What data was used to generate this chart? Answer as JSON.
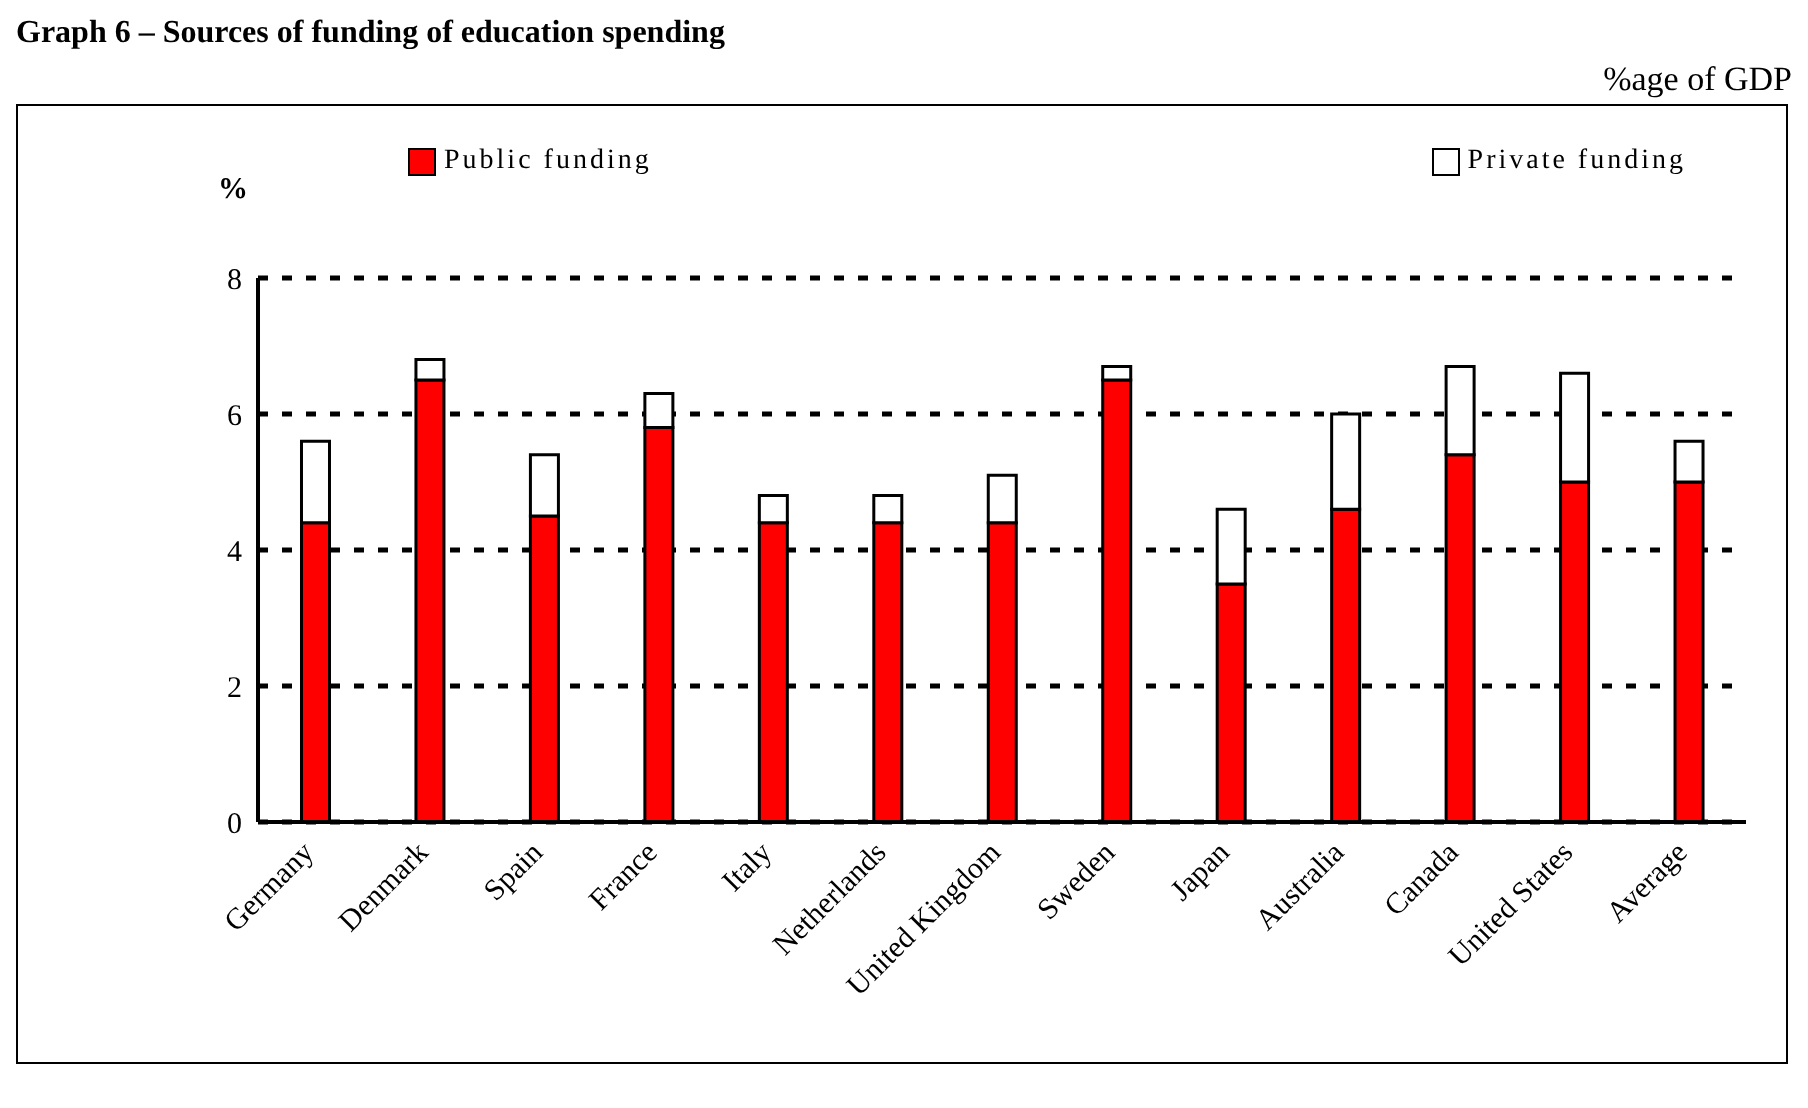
{
  "chart_data": {
    "type": "bar",
    "title": "Graph 6 – Sources of funding of education spending",
    "ylabel": "%",
    "annotations": [
      "%age of GDP"
    ],
    "categories": [
      "Germany",
      "Denmark",
      "Spain",
      "France",
      "Italy",
      "Netherlands",
      "United Kingdom",
      "Sweden",
      "Japan",
      "Australia",
      "Canada",
      "United States",
      "Average"
    ],
    "series": [
      {
        "name": "Public funding",
        "color": "#ff0000",
        "values": [
          4.4,
          6.5,
          4.5,
          5.8,
          4.4,
          4.4,
          4.4,
          6.5,
          3.5,
          4.6,
          5.4,
          5.0,
          5.0
        ]
      },
      {
        "name": "Private funding",
        "color": "#ffffff",
        "values": [
          1.2,
          0.3,
          0.9,
          0.5,
          0.4,
          0.4,
          0.7,
          0.2,
          1.1,
          1.4,
          1.3,
          1.6,
          0.6
        ]
      }
    ],
    "stacked": true,
    "ylim": [
      0,
      8
    ],
    "yticks": [
      0,
      2,
      4,
      6,
      8
    ],
    "grid": "y",
    "legend": "top"
  }
}
